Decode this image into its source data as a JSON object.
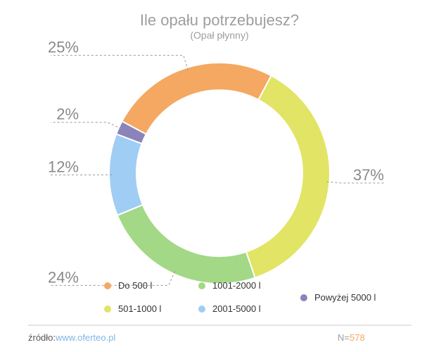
{
  "chart_data": {
    "type": "pie",
    "title": "Ile opału potrzebujesz?",
    "subtitle": "(Opał płynny)",
    "categories": [
      "Do 500 l",
      "501-1000 l",
      "1001-2000 l",
      "2001-5000 l",
      "Powyżej 5000 l"
    ],
    "values": [
      25,
      37,
      24,
      12,
      2
    ],
    "value_labels": [
      "25%",
      "37%",
      "24%",
      "12%",
      "2%"
    ],
    "colors": [
      "#f4a862",
      "#e2e465",
      "#a3d886",
      "#9fcdf4",
      "#8a84bb"
    ],
    "donut": true,
    "legend_position": "bottom"
  },
  "footer": {
    "source_label": "źródło:",
    "source_link": "www.oferteo.pl",
    "n_label": "N=",
    "n_value": "578"
  },
  "colors": {
    "link": "#7fb6e6",
    "n_value": "#f4a862",
    "text_muted": "#9e9e9e"
  }
}
